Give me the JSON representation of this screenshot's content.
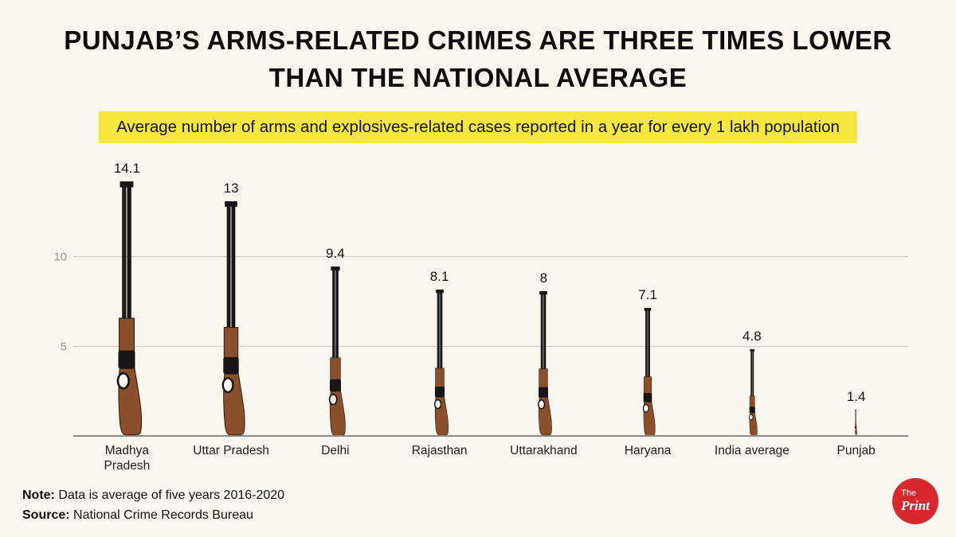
{
  "title": "PUNJAB’S ARMS-RELATED CRIMES ARE THREE TIMES LOWER THAN THE NATIONAL AVERAGE",
  "subtitle": "Average number of arms and explosives-related cases reported in a year for every 1 lakh population",
  "chart_data": {
    "type": "bar",
    "bar_style": "rifle-pictogram",
    "categories": [
      "Madhya Pradesh",
      "Uttar Pradesh",
      "Delhi",
      "Rajasthan",
      "Uttarakhand",
      "Haryana",
      "India average",
      "Punjab"
    ],
    "values": [
      14.1,
      13,
      9.4,
      8.1,
      8,
      7.1,
      4.8,
      1.4
    ],
    "value_labels": [
      "14.1",
      "13",
      "9.4",
      "8.1",
      "8",
      "7.1",
      "4.8",
      "1.4"
    ],
    "title": "Average number of arms and explosives-related cases reported in a year for every 1 lakh population",
    "xlabel": "",
    "ylabel": "",
    "ylim": [
      0,
      15
    ],
    "yticks": [
      5,
      10
    ],
    "grid": "horizontal gridlines at 5 and 10",
    "legend": "none"
  },
  "notes": {
    "note_label": "Note:",
    "note_text": " Data is average of five years 2016-2020",
    "source_label": "Source:",
    "source_text": " National Crime Records Bureau"
  },
  "logo": {
    "line1": "The",
    "line2": "Print"
  },
  "colors": {
    "background": "#f8f6ef",
    "highlight": "#f8e73f",
    "title": "#0d0d0d",
    "gridline": "#cfccc8",
    "axis_label": "#9a9a99",
    "barrel": "#161616",
    "wood": "#8a4f2b",
    "logo_red": "#d7282f"
  }
}
